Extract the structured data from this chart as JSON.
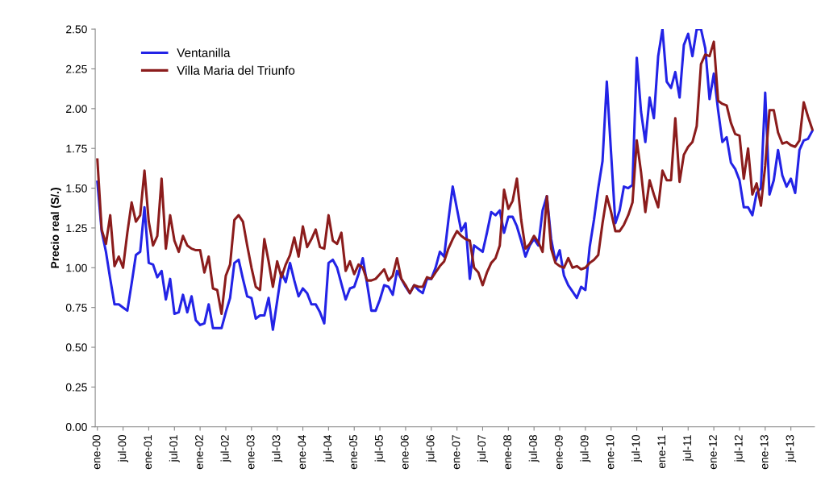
{
  "chart_data": {
    "type": "line",
    "ylabel": "Precio real (S/.)",
    "categories": [
      "ene-00",
      null,
      null,
      null,
      null,
      null,
      "jul-00",
      null,
      null,
      null,
      null,
      null,
      "ene-01",
      null,
      null,
      null,
      null,
      null,
      "jul-01",
      null,
      null,
      null,
      null,
      null,
      "ene-02",
      null,
      null,
      null,
      null,
      null,
      "jul-02",
      null,
      null,
      null,
      null,
      null,
      "ene-03",
      null,
      null,
      null,
      null,
      null,
      "jul-03",
      null,
      null,
      null,
      null,
      null,
      "ene-04",
      null,
      null,
      null,
      null,
      null,
      "jul-04",
      null,
      null,
      null,
      null,
      null,
      "ene-05",
      null,
      null,
      null,
      null,
      null,
      "jul-05",
      null,
      null,
      null,
      null,
      null,
      "ene-06",
      null,
      null,
      null,
      null,
      null,
      "jul-06",
      null,
      null,
      null,
      null,
      null,
      "ene-07",
      null,
      null,
      null,
      null,
      null,
      "jul-07",
      null,
      null,
      null,
      null,
      null,
      "ene-08",
      null,
      null,
      null,
      null,
      null,
      "jul-08",
      null,
      null,
      null,
      null,
      null,
      "ene-09",
      null,
      null,
      null,
      null,
      null,
      "jul-09",
      null,
      null,
      null,
      null,
      null,
      "ene-10",
      null,
      null,
      null,
      null,
      null,
      "jul-10",
      null,
      null,
      null,
      null,
      null,
      "ene-11",
      null,
      null,
      null,
      null,
      null,
      "jul-11",
      null,
      null,
      null,
      null,
      null,
      "ene-12",
      null,
      null,
      null,
      null,
      null,
      "jul-12",
      null,
      null,
      null,
      null,
      null,
      "ene-13",
      null,
      null,
      null,
      null,
      null,
      "jul-13",
      null,
      null,
      null,
      null,
      null
    ],
    "series": [
      {
        "name": "Ventanilla",
        "color": "#2323e6",
        "values": [
          1.54,
          1.23,
          1.1,
          0.93,
          0.77,
          0.77,
          0.75,
          0.73,
          0.9,
          1.08,
          1.1,
          1.38,
          1.03,
          1.02,
          0.94,
          0.98,
          0.8,
          0.93,
          0.71,
          0.72,
          0.83,
          0.72,
          0.82,
          0.67,
          0.64,
          0.65,
          0.77,
          0.62,
          0.62,
          0.62,
          0.72,
          0.81,
          1.03,
          1.05,
          0.93,
          0.82,
          0.81,
          0.68,
          0.7,
          0.7,
          0.81,
          0.61,
          0.79,
          0.97,
          0.91,
          1.03,
          0.92,
          0.82,
          0.87,
          0.84,
          0.77,
          0.77,
          0.72,
          0.65,
          1.03,
          1.05,
          1.0,
          0.9,
          0.8,
          0.87,
          0.88,
          0.96,
          1.06,
          0.9,
          0.73,
          0.73,
          0.8,
          0.89,
          0.88,
          0.83,
          0.98,
          0.93,
          0.88,
          0.84,
          0.89,
          0.86,
          0.84,
          0.93,
          0.93,
          1.0,
          1.1,
          1.07,
          1.3,
          1.51,
          1.37,
          1.23,
          1.28,
          0.93,
          1.14,
          1.12,
          1.1,
          1.22,
          1.35,
          1.33,
          1.36,
          1.22,
          1.32,
          1.32,
          1.26,
          1.17,
          1.07,
          1.14,
          1.18,
          1.14,
          1.36,
          1.45,
          1.18,
          1.04,
          1.11,
          0.95,
          0.89,
          0.85,
          0.81,
          0.88,
          0.86,
          1.13,
          1.3,
          1.5,
          1.67,
          2.17,
          1.72,
          1.28,
          1.36,
          1.51,
          1.5,
          1.52,
          2.32,
          1.98,
          1.79,
          2.07,
          1.94,
          2.33,
          2.5,
          2.17,
          2.13,
          2.23,
          2.07,
          2.4,
          2.47,
          2.33,
          2.5,
          2.5,
          2.38,
          2.06,
          2.22,
          1.99,
          1.79,
          1.82,
          1.66,
          1.62,
          1.55,
          1.38,
          1.38,
          1.33,
          1.47,
          1.5,
          2.1,
          1.46,
          1.55,
          1.74,
          1.58,
          1.51,
          1.56,
          1.47,
          1.74,
          1.8,
          1.81,
          1.86
        ]
      },
      {
        "name": "Villa Maria del Triunfo",
        "color": "#8b1c1c",
        "values": [
          1.68,
          1.24,
          1.15,
          1.33,
          1.01,
          1.07,
          1.0,
          1.22,
          1.41,
          1.29,
          1.33,
          1.61,
          1.29,
          1.14,
          1.2,
          1.56,
          1.12,
          1.33,
          1.17,
          1.1,
          1.2,
          1.14,
          1.12,
          1.11,
          1.11,
          0.97,
          1.07,
          0.87,
          0.86,
          0.71,
          0.95,
          1.02,
          1.3,
          1.33,
          1.29,
          1.14,
          1.0,
          0.88,
          0.86,
          1.18,
          1.04,
          0.88,
          1.04,
          0.94,
          1.02,
          1.08,
          1.19,
          1.07,
          1.26,
          1.13,
          1.18,
          1.24,
          1.13,
          1.12,
          1.33,
          1.17,
          1.15,
          1.22,
          0.98,
          1.04,
          0.96,
          1.02,
          1.0,
          0.92,
          0.92,
          0.93,
          0.96,
          0.99,
          0.92,
          0.95,
          1.06,
          0.93,
          0.89,
          0.84,
          0.89,
          0.88,
          0.88,
          0.94,
          0.93,
          0.97,
          1.01,
          1.04,
          1.12,
          1.18,
          1.23,
          1.2,
          1.18,
          1.17,
          1.0,
          0.97,
          0.89,
          0.97,
          1.03,
          1.06,
          1.14,
          1.49,
          1.37,
          1.42,
          1.56,
          1.3,
          1.12,
          1.15,
          1.2,
          1.16,
          1.1,
          1.45,
          1.12,
          1.03,
          1.01,
          1.0,
          1.06,
          1.0,
          1.01,
          0.99,
          1.0,
          1.03,
          1.05,
          1.08,
          1.28,
          1.45,
          1.35,
          1.23,
          1.23,
          1.27,
          1.33,
          1.41,
          1.8,
          1.6,
          1.35,
          1.55,
          1.46,
          1.38,
          1.61,
          1.55,
          1.55,
          1.94,
          1.54,
          1.71,
          1.76,
          1.79,
          1.89,
          2.28,
          2.34,
          2.33,
          2.42,
          2.05,
          2.03,
          2.02,
          1.91,
          1.84,
          1.83,
          1.56,
          1.75,
          1.46,
          1.53,
          1.39,
          1.64,
          1.99,
          1.99,
          1.85,
          1.78,
          1.79,
          1.77,
          1.76,
          1.8,
          2.04,
          1.95,
          1.87
        ]
      }
    ],
    "ylim": [
      0,
      2.5
    ],
    "yticks": [
      {
        "value": 0,
        "label": "0.00"
      },
      {
        "value": 0.25,
        "label": "0.25"
      },
      {
        "value": 0.5,
        "label": "0.50"
      },
      {
        "value": 0.75,
        "label": "0.75"
      },
      {
        "value": 1,
        "label": "1.00"
      },
      {
        "value": 1.25,
        "label": "1.25"
      },
      {
        "value": 1.5,
        "label": "1.50"
      },
      {
        "value": 1.75,
        "label": "1.75"
      },
      {
        "value": 2,
        "label": "2.00"
      },
      {
        "value": 2.25,
        "label": "2.25"
      },
      {
        "value": 2.5,
        "label": "2.50"
      }
    ],
    "grid": false,
    "legend": "top left",
    "marker": "none",
    "line_style": "solid"
  }
}
